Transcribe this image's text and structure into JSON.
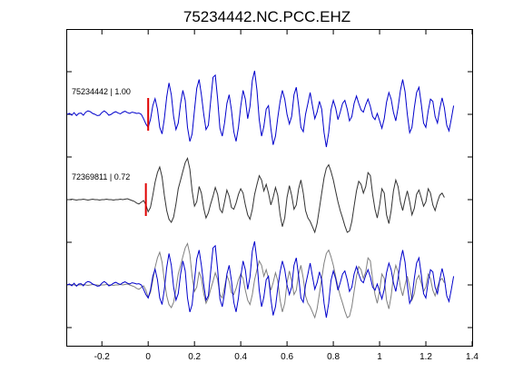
{
  "chart_data": {
    "type": "line",
    "title": "75234442.NC.PCC.EHZ",
    "xlabel": "",
    "ylabel": "",
    "xlim": [
      -0.35,
      1.4
    ],
    "x_ticks": [
      -0.2,
      0,
      0.2,
      0.4,
      0.6,
      0.8,
      1,
      1.2,
      1.4
    ],
    "x_tick_labels": [
      "-0.2",
      "0",
      "0.2",
      "0.4",
      "0.6",
      "0.8",
      "1",
      "1.2",
      "1.4"
    ],
    "y_ticks_shown": true,
    "y_tick_labels_shown": false,
    "grid": false,
    "legend": "none",
    "colors": {
      "primary_trace": "#0000cc",
      "secondary_trace": "#333333",
      "overlay_secondary": "#808080",
      "pick_marker": "#e00000",
      "axes": "#000000"
    },
    "traces": [
      {
        "label": "75234442 | 1.00",
        "color": "#0000cc",
        "pick_time": 0.0,
        "dt": 0.01,
        "t0": -0.35,
        "offset": 0,
        "amplitudes": [
          0.0,
          0.02,
          -0.02,
          0.04,
          -0.03,
          0.02,
          0.03,
          -0.02,
          0.05,
          0.08,
          0.06,
          0.02,
          0.0,
          -0.03,
          -0.02,
          0.04,
          0.08,
          0.04,
          -0.02,
          0.0,
          0.04,
          0.06,
          0.03,
          0.01,
          0.05,
          0.07,
          0.04,
          0.02,
          0.05,
          0.04,
          0.02,
          0.03,
          0.0,
          -0.1,
          -0.22,
          -0.3,
          -0.12,
          0.2,
          0.36,
          0.12,
          -0.3,
          -0.45,
          -0.1,
          0.4,
          0.72,
          0.45,
          -0.05,
          -0.35,
          -0.2,
          0.25,
          0.55,
          0.32,
          -0.3,
          -0.62,
          -0.45,
          0.1,
          0.6,
          0.8,
          0.45,
          0.0,
          -0.35,
          -0.25,
          0.3,
          0.85,
          0.9,
          0.35,
          -0.32,
          -0.5,
          -0.2,
          0.25,
          0.45,
          0.1,
          -0.4,
          -0.62,
          -0.3,
          0.18,
          0.55,
          0.35,
          -0.1,
          0.18,
          0.78,
          1.0,
          0.55,
          -0.12,
          -0.5,
          -0.28,
          0.12,
          0.2,
          -0.32,
          -0.7,
          -0.5,
          -0.08,
          0.3,
          0.55,
          0.35,
          0.0,
          -0.22,
          -0.05,
          0.45,
          0.62,
          0.2,
          -0.3,
          -0.4,
          0.0,
          0.25,
          0.5,
          0.2,
          -0.1,
          0.05,
          0.3,
          0.12,
          -0.42,
          -0.75,
          -0.42,
          0.1,
          0.32,
          0.15,
          -0.12,
          0.05,
          0.25,
          0.32,
          0.12,
          -0.15,
          -0.05,
          0.25,
          0.42,
          0.25,
          0.1,
          0.05,
          0.22,
          0.35,
          0.18,
          -0.05,
          -0.12,
          0.02,
          -0.15,
          -0.32,
          -0.1,
          0.28,
          0.5,
          0.35,
          0.05,
          -0.15,
          0.15,
          0.55,
          0.8,
          0.52,
          0.0,
          -0.42,
          -0.3,
          0.15,
          0.5,
          0.62,
          0.25,
          -0.2,
          -0.3,
          0.08,
          0.35,
          0.3,
          -0.05,
          -0.2,
          0.12,
          0.38,
          0.15,
          -0.25,
          -0.38,
          -0.1,
          0.2
        ]
      },
      {
        "label": "72369811 | 0.72",
        "color": "#333333",
        "pick_time": -0.01,
        "dt": 0.01,
        "t0": -0.35,
        "offset": 1,
        "amplitudes": [
          0.0,
          0.0,
          0.01,
          0.0,
          -0.01,
          0.0,
          0.0,
          0.01,
          0.0,
          -0.01,
          0.0,
          0.01,
          0.0,
          0.0,
          -0.01,
          0.0,
          0.0,
          0.01,
          0.0,
          0.0,
          -0.01,
          0.0,
          0.0,
          0.01,
          0.0,
          0.01,
          0.02,
          0.0,
          -0.02,
          -0.04,
          -0.08,
          -0.1,
          -0.06,
          -0.02,
          -0.12,
          -0.28,
          -0.18,
          0.1,
          0.4,
          0.62,
          0.75,
          0.52,
          0.1,
          -0.25,
          -0.45,
          -0.52,
          -0.4,
          -0.1,
          0.25,
          0.45,
          0.65,
          0.85,
          0.95,
          0.7,
          0.2,
          -0.15,
          -0.05,
          0.3,
          0.15,
          -0.2,
          -0.42,
          -0.3,
          -0.1,
          0.08,
          0.28,
          0.12,
          -0.22,
          -0.3,
          -0.05,
          0.22,
          0.08,
          -0.18,
          -0.22,
          -0.08,
          0.12,
          0.25,
          0.15,
          -0.12,
          -0.35,
          -0.45,
          -0.22,
          0.12,
          0.35,
          0.55,
          0.45,
          0.2,
          0.35,
          0.15,
          -0.12,
          0.05,
          0.28,
          0.1,
          -0.35,
          -0.62,
          -0.42,
          0.05,
          0.32,
          0.1,
          -0.22,
          -0.12,
          0.25,
          0.45,
          0.15,
          -0.25,
          -0.42,
          -0.5,
          -0.62,
          -0.75,
          -0.55,
          -0.2,
          0.15,
          0.5,
          0.72,
          0.8,
          0.65,
          0.45,
          0.2,
          -0.05,
          -0.25,
          -0.42,
          -0.6,
          -0.75,
          -0.72,
          -0.5,
          -0.15,
          0.2,
          0.42,
          0.35,
          0.15,
          0.3,
          0.62,
          0.55,
          0.12,
          -0.22,
          -0.42,
          -0.12,
          0.25,
          0.15,
          -0.35,
          -0.55,
          -0.25,
          0.2,
          0.45,
          0.3,
          -0.05,
          -0.25,
          0.0,
          0.2,
          -0.05,
          -0.35,
          -0.2,
          0.12,
          0.22,
          0.05,
          -0.15,
          -0.05,
          0.25,
          0.15,
          -0.12,
          -0.25,
          -0.05,
          0.1,
          0.15,
          0.05
        ]
      },
      {
        "label": "",
        "overlay": true,
        "offset": 2,
        "note_layers": [
          "72369811",
          "75234442"
        ]
      }
    ]
  }
}
